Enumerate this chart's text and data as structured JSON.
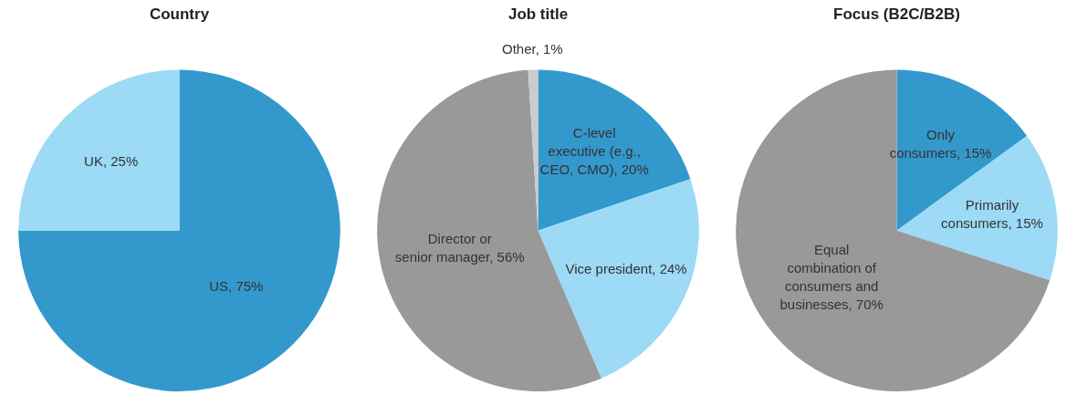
{
  "chart_data": [
    {
      "type": "pie",
      "title": "Country",
      "categories": [
        "US",
        "UK"
      ],
      "values": [
        75,
        25
      ],
      "value_labels": [
        "75%",
        "25%"
      ],
      "colors": [
        "#3399cc",
        "#9cdaf6"
      ],
      "legend": false
    },
    {
      "type": "pie",
      "title": "Job title",
      "categories": [
        "C-level executive (e.g., CEO, CMO)",
        "Vice president",
        "Director or senior manager",
        "Other"
      ],
      "values": [
        20,
        24,
        56,
        1
      ],
      "value_labels": [
        "20%",
        "24%",
        "56%",
        "1%"
      ],
      "colors": [
        "#3399cc",
        "#9cdaf6",
        "#999999",
        "#cccccc"
      ],
      "legend": false
    },
    {
      "type": "pie",
      "title": "Focus (B2C/B2B)",
      "categories": [
        "Only consumers",
        "Primarily consumers",
        "Equal combination of consumers and businesses"
      ],
      "values": [
        15,
        15,
        70
      ],
      "value_labels": [
        "15%",
        "15%",
        "70%"
      ],
      "colors": [
        "#3399cc",
        "#9cdaf6",
        "#999999"
      ],
      "legend": false
    }
  ]
}
